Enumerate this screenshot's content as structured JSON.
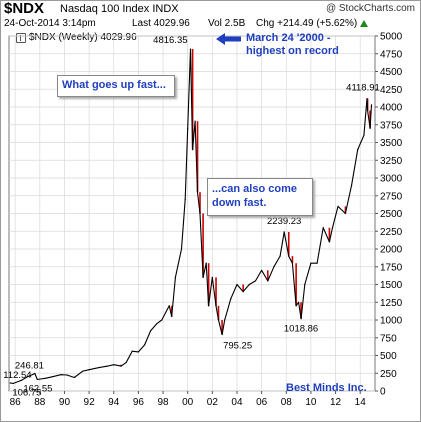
{
  "header": {
    "ticker": "$NDX",
    "fullname": "Nasdaq 100 Index  INDX",
    "copyright": "@ StockCharts.com",
    "date": "24-Oct-2014 3:14pm",
    "last": "Last 4029.96",
    "vol": "Vol 2.5B",
    "chg": "Chg +214.49 (+5.62%)",
    "chg_up_icon": "triangle-up-icon",
    "legend": "$NDX (Weekly) 4029.96"
  },
  "callouts": {
    "box1": "What goes up fast...",
    "box2": "...can also come down fast.",
    "note": "March 24 '2000 - highest on record",
    "watermark": "Best Minds Inc."
  },
  "colors": {
    "price_line": "#000000",
    "down_bars": "#cc0000",
    "callout_text": "#1f3fbf",
    "grid": "#d9d9d9"
  },
  "chart_data": {
    "type": "line",
    "title": "",
    "xlabel": "",
    "ylabel": "",
    "xlim": [
      1985.5,
      2015.2
    ],
    "ylim": [
      0,
      5000
    ],
    "y_ticks": [
      0,
      250,
      500,
      750,
      1000,
      1250,
      1500,
      1750,
      2000,
      2250,
      2500,
      2750,
      3000,
      3250,
      3500,
      3750,
      4000,
      4250,
      4500,
      4750,
      5000
    ],
    "x_ticks": [
      "86",
      "88",
      "90",
      "92",
      "94",
      "96",
      "98",
      "00",
      "02",
      "04",
      "06",
      "08",
      "10",
      "12",
      "14"
    ],
    "x_tick_years": [
      1986,
      1988,
      1990,
      1992,
      1994,
      1996,
      1998,
      2000,
      2002,
      2004,
      2006,
      2008,
      2010,
      2012,
      2014
    ],
    "grid": true,
    "series": [
      {
        "x": [
          1985.6,
          1985.85,
          1986.5,
          1987.0,
          1987.6,
          1987.8,
          1988.5,
          1989.0,
          1989.7,
          1990.2,
          1990.8,
          1991.5,
          1992.0,
          1992.8,
          1993.5,
          1994.0,
          1994.6,
          1995.0,
          1995.5,
          1996.0,
          1996.5,
          1997.0,
          1997.5,
          1997.9,
          1998.5,
          1998.7,
          1999.0,
          1999.5,
          1999.8,
          2000.0,
          2000.23,
          2000.4,
          2000.6,
          2000.8,
          2001.0,
          2001.25,
          2001.5,
          2001.7,
          2002.0,
          2002.3,
          2002.5,
          2002.79,
          2003.0,
          2003.5,
          2004.0,
          2004.5,
          2005.0,
          2005.5,
          2006.0,
          2006.5,
          2007.0,
          2007.5,
          2007.83,
          2008.2,
          2008.5,
          2008.8,
          2009.0,
          2009.2,
          2009.5,
          2010.0,
          2010.5,
          2011.0,
          2011.5,
          2011.75,
          2012.2,
          2012.8,
          2013.3,
          2013.8,
          2014.3,
          2014.55,
          2014.6,
          2014.8,
          2014.92
        ],
        "y": [
          112.54,
          106.75,
          150,
          200,
          246.81,
          162.55,
          180,
          200,
          230,
          225,
          190,
          280,
          300,
          330,
          350,
          370,
          350,
          400,
          560,
          550,
          650,
          850,
          950,
          1000,
          1200,
          1050,
          1600,
          2000,
          2700,
          3700,
          4816.35,
          3400,
          3800,
          2800,
          2500,
          1600,
          1800,
          1200,
          1600,
          1200,
          1000,
          795.25,
          1000,
          1300,
          1500,
          1400,
          1500,
          1550,
          1700,
          1550,
          1750,
          1900,
          2239.23,
          1900,
          1800,
          1200,
          1250,
          1018.86,
          1500,
          1800,
          1800,
          2300,
          2100,
          2300,
          2600,
          2500,
          2900,
          3400,
          3600,
          4118.91,
          3950,
          3700,
          4029.96
        ]
      }
    ],
    "annotations": [
      {
        "text": "106.75",
        "x": 1985.85,
        "y": 106.75
      },
      {
        "text": "112.54",
        "x": 1985.6,
        "y": 112.54
      },
      {
        "text": "246.81",
        "x": 1987.6,
        "y": 246.81
      },
      {
        "text": "162.55",
        "x": 1987.8,
        "y": 162.55
      },
      {
        "text": "4816.35",
        "x": 2000.23,
        "y": 4816.35
      },
      {
        "text": "795.25",
        "x": 2002.79,
        "y": 795.25
      },
      {
        "text": "2239.23",
        "x": 2007.83,
        "y": 2239.23
      },
      {
        "text": "1018.86",
        "x": 2009.2,
        "y": 1018.86
      },
      {
        "text": "4118.91",
        "x": 2014.55,
        "y": 4118.91
      }
    ]
  }
}
